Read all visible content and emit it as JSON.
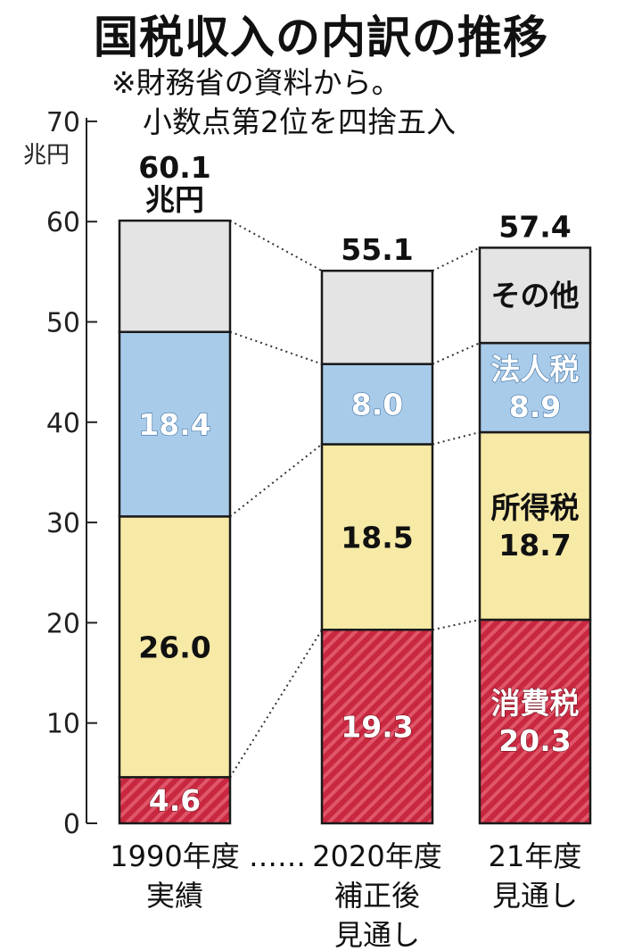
{
  "title": "国税収入の内訳の推移",
  "notes": [
    "※財務省の資料から。",
    "小数点第2位を四捨五入"
  ],
  "chart_data": {
    "type": "bar",
    "stacked": true,
    "unit_label": "兆円",
    "ylim": [
      0,
      70
    ],
    "yticks": [
      0,
      10,
      20,
      30,
      40,
      50,
      60,
      70
    ],
    "categories": [
      {
        "lines": [
          "1990年度",
          "実績"
        ]
      },
      {
        "lines": [
          "2020年度",
          "補正後",
          "見通し"
        ]
      },
      {
        "lines": [
          "21年度",
          "見通し"
        ]
      }
    ],
    "category_separator": "……",
    "totals": [
      {
        "value": "60.1",
        "unit": "兆円"
      },
      {
        "value": "55.1"
      },
      {
        "value": "57.4"
      }
    ],
    "series": [
      {
        "name": "消費税",
        "values": [
          4.6,
          19.3,
          20.3
        ],
        "color": "#c8283f",
        "hatched": true,
        "text_color": "#ffffff"
      },
      {
        "name": "所得税",
        "values": [
          26.0,
          18.5,
          18.7
        ],
        "color": "#f7eaa6",
        "text_color": "#111111"
      },
      {
        "name": "法人税",
        "values": [
          18.4,
          8.0,
          8.9
        ],
        "color": "#a9cbea",
        "text_color": "#ffffff"
      },
      {
        "name": "その他",
        "values": [
          11.1,
          9.3,
          9.5
        ],
        "color": "#e4e4e4",
        "text_color": "#111111"
      }
    ],
    "segment_labels": [
      [
        {
          "lines": [
            "4.6"
          ]
        },
        {
          "lines": [
            "19.3"
          ]
        },
        {
          "lines": [
            "消費税",
            "20.3"
          ]
        }
      ],
      [
        {
          "lines": [
            "26.0"
          ]
        },
        {
          "lines": [
            "18.5"
          ]
        },
        {
          "lines": [
            "所得税",
            "18.7"
          ]
        }
      ],
      [
        {
          "lines": [
            "18.4"
          ]
        },
        {
          "lines": [
            "8.0"
          ]
        },
        {
          "lines": [
            "法人税",
            "8.9"
          ]
        }
      ],
      [
        {
          "lines": []
        },
        {
          "lines": []
        },
        {
          "lines": [
            "その他"
          ]
        }
      ]
    ]
  }
}
